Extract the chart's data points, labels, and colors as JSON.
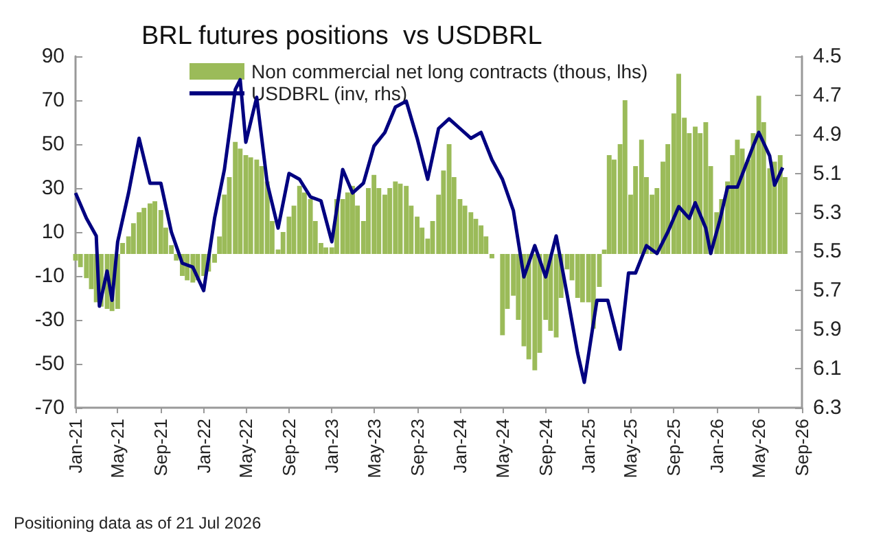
{
  "chart_data": {
    "type": "bar",
    "title": "BRL futures positions  vs USDBRL",
    "annotations": [
      "Positioning data as of 21 Jul 2026"
    ],
    "xlim": [
      "2021-01-01",
      "2026-09-01"
    ],
    "xticks": [
      {
        "value": "2021-01-01",
        "label": "Jan-21"
      },
      {
        "value": "2021-05-01",
        "label": "May-21"
      },
      {
        "value": "2021-09-01",
        "label": "Sep-21"
      },
      {
        "value": "2022-01-01",
        "label": "Jan-22"
      },
      {
        "value": "2022-05-01",
        "label": "May-22"
      },
      {
        "value": "2022-09-01",
        "label": "Sep-22"
      },
      {
        "value": "2023-01-01",
        "label": "Jan-23"
      },
      {
        "value": "2023-05-01",
        "label": "May-23"
      },
      {
        "value": "2023-09-01",
        "label": "Sep-23"
      },
      {
        "value": "2024-01-01",
        "label": "Jan-24"
      },
      {
        "value": "2024-05-01",
        "label": "May-24"
      },
      {
        "value": "2024-09-01",
        "label": "Sep-24"
      },
      {
        "value": "2025-01-01",
        "label": "Jan-25"
      },
      {
        "value": "2025-05-01",
        "label": "May-25"
      },
      {
        "value": "2025-09-01",
        "label": "Sep-25"
      },
      {
        "value": "2026-01-01",
        "label": "Jan-26"
      },
      {
        "value": "2026-05-01",
        "label": "May-26"
      },
      {
        "value": "2026-09-01",
        "label": "Sep-26"
      }
    ],
    "ylim": [
      -70,
      90
    ],
    "yticks": [
      -70,
      -50,
      -30,
      -10,
      10,
      30,
      50,
      70,
      90
    ],
    "y2lim": [
      6.3,
      4.5
    ],
    "y2ticks": [
      4.5,
      4.7,
      4.9,
      5.1,
      5.3,
      5.5,
      5.7,
      5.9,
      6.1,
      6.3
    ],
    "grid": false,
    "legend": "top",
    "series": [
      {
        "name": "Non commercial net long contracts (thous, lhs)",
        "color": "#9bbb59",
        "x": [
          "2021-01-01",
          "2021-01-15",
          "2021-02-01",
          "2021-02-15",
          "2021-03-01",
          "2021-03-15",
          "2021-04-01",
          "2021-04-15",
          "2021-05-01",
          "2021-05-15",
          "2021-06-01",
          "2021-06-15",
          "2021-07-01",
          "2021-07-15",
          "2021-08-01",
          "2021-08-15",
          "2021-09-01",
          "2021-09-15",
          "2021-10-01",
          "2021-10-15",
          "2021-11-01",
          "2021-11-15",
          "2021-12-01",
          "2021-12-15",
          "2022-01-01",
          "2022-01-15",
          "2022-02-01",
          "2022-02-15",
          "2022-03-01",
          "2022-03-15",
          "2022-04-01",
          "2022-04-15",
          "2022-05-01",
          "2022-05-15",
          "2022-06-01",
          "2022-06-15",
          "2022-07-01",
          "2022-07-15",
          "2022-08-01",
          "2022-08-15",
          "2022-09-01",
          "2022-09-15",
          "2022-10-01",
          "2022-10-15",
          "2022-11-01",
          "2022-11-15",
          "2022-12-01",
          "2022-12-15",
          "2023-01-01",
          "2023-01-15",
          "2023-02-01",
          "2023-02-15",
          "2023-03-01",
          "2023-03-15",
          "2023-04-01",
          "2023-04-15",
          "2023-05-01",
          "2023-05-15",
          "2023-06-01",
          "2023-06-15",
          "2023-07-01",
          "2023-07-15",
          "2023-08-01",
          "2023-08-15",
          "2023-09-01",
          "2023-09-15",
          "2023-10-01",
          "2023-10-15",
          "2023-11-01",
          "2023-11-15",
          "2023-12-01",
          "2023-12-15",
          "2024-01-01",
          "2024-01-15",
          "2024-02-01",
          "2024-02-15",
          "2024-03-01",
          "2024-03-15",
          "2024-04-01",
          "2024-04-15",
          "2024-05-01",
          "2024-05-15",
          "2024-06-01",
          "2024-06-15",
          "2024-07-01",
          "2024-07-15",
          "2024-08-01",
          "2024-08-15",
          "2024-09-01",
          "2024-09-15",
          "2024-10-01",
          "2024-10-15",
          "2024-11-01",
          "2024-11-15",
          "2024-12-01",
          "2024-12-15",
          "2025-01-01",
          "2025-01-15",
          "2025-02-01",
          "2025-02-15",
          "2025-03-01",
          "2025-03-15",
          "2025-04-01",
          "2025-04-15",
          "2025-05-01",
          "2025-05-15",
          "2025-06-01",
          "2025-06-15",
          "2025-07-01",
          "2025-07-15",
          "2025-08-01",
          "2025-08-15",
          "2025-09-01",
          "2025-09-15",
          "2025-10-01",
          "2025-10-15",
          "2025-11-01",
          "2025-11-15",
          "2025-12-01",
          "2025-12-15",
          "2026-01-01",
          "2026-01-15",
          "2026-02-01",
          "2026-02-15",
          "2026-03-01",
          "2026-03-15",
          "2026-04-01",
          "2026-04-15",
          "2026-05-01",
          "2026-05-15",
          "2026-06-01",
          "2026-06-15",
          "2026-07-01",
          "2026-07-15"
        ],
        "values": [
          -3,
          -6,
          -11,
          -16,
          -22,
          -24,
          -25,
          -26,
          -25,
          5,
          8,
          14,
          19,
          21,
          23,
          24,
          20,
          12,
          4,
          -3,
          -10,
          -12,
          -13,
          -12,
          -10,
          -8,
          -4,
          8,
          27,
          35,
          51,
          48,
          45,
          44,
          43,
          40,
          33,
          15,
          2,
          10,
          17,
          22,
          31,
          28,
          25,
          15,
          5,
          3,
          3,
          25,
          25,
          28,
          31,
          22,
          15,
          30,
          36,
          30,
          27,
          30,
          33,
          32,
          31,
          22,
          17,
          12,
          7,
          15,
          27,
          38,
          50,
          35,
          25,
          22,
          19,
          16,
          13,
          8,
          -2,
          0,
          -37,
          -25,
          -19,
          -30,
          -42,
          -48,
          -53,
          -45,
          -30,
          -35,
          -38,
          -20,
          -7,
          -12,
          -20,
          -22,
          -22,
          -34,
          -15,
          2,
          45,
          43,
          50,
          70,
          27,
          40,
          52,
          35,
          27,
          30,
          42,
          50,
          64,
          82,
          62,
          55,
          58,
          55,
          60,
          40,
          19,
          25,
          33,
          45,
          52,
          48,
          43,
          55,
          72,
          60,
          39,
          42,
          45,
          35
        ]
      },
      {
        "name": "USDBRL (inv, rhs)",
        "type": "line",
        "axis": "y2",
        "color": "#000080",
        "x": [
          "2021-01-01",
          "2021-02-01",
          "2021-03-01",
          "2021-03-10",
          "2021-04-01",
          "2021-04-15",
          "2021-05-01",
          "2021-06-01",
          "2021-07-01",
          "2021-08-01",
          "2021-09-01",
          "2021-10-01",
          "2021-11-01",
          "2021-12-01",
          "2022-01-01",
          "2022-02-01",
          "2022-03-01",
          "2022-04-01",
          "2022-04-15",
          "2022-05-01",
          "2022-06-01",
          "2022-07-01",
          "2022-08-01",
          "2022-09-01",
          "2022-10-01",
          "2022-11-01",
          "2022-12-01",
          "2023-01-01",
          "2023-02-01",
          "2023-03-01",
          "2023-04-01",
          "2023-05-01",
          "2023-06-01",
          "2023-07-01",
          "2023-08-01",
          "2023-09-01",
          "2023-10-01",
          "2023-11-01",
          "2023-12-01",
          "2024-01-01",
          "2024-02-01",
          "2024-03-01",
          "2024-04-01",
          "2024-05-01",
          "2024-06-01",
          "2024-07-01",
          "2024-08-01",
          "2024-09-01",
          "2024-10-01",
          "2024-11-01",
          "2024-12-01",
          "2024-12-20",
          "2025-01-25",
          "2025-02-25",
          "2025-04-01",
          "2025-04-25",
          "2025-05-15",
          "2025-06-15",
          "2025-07-15",
          "2025-08-15",
          "2025-09-15",
          "2025-10-15",
          "2025-11-01",
          "2025-12-01",
          "2025-12-15",
          "2026-01-10",
          "2026-02-01",
          "2026-03-01",
          "2026-04-15",
          "2026-05-01",
          "2026-06-01",
          "2026-06-15",
          "2026-07-08"
        ],
        "values": [
          5.2,
          5.33,
          5.42,
          5.78,
          5.6,
          5.75,
          5.45,
          5.2,
          4.92,
          5.15,
          5.15,
          5.4,
          5.56,
          5.58,
          5.7,
          5.33,
          5.08,
          4.67,
          4.62,
          4.94,
          4.71,
          5.15,
          5.38,
          5.1,
          5.13,
          5.22,
          5.24,
          5.45,
          5.08,
          5.2,
          5.15,
          4.96,
          4.89,
          4.76,
          4.73,
          4.92,
          5.13,
          4.87,
          4.82,
          4.87,
          4.92,
          4.89,
          5.03,
          5.13,
          5.29,
          5.63,
          5.47,
          5.63,
          5.42,
          5.72,
          6.02,
          6.17,
          5.75,
          5.75,
          6.0,
          5.61,
          5.61,
          5.47,
          5.51,
          5.4,
          5.27,
          5.33,
          5.25,
          5.38,
          5.51,
          5.34,
          5.17,
          5.17,
          4.96,
          4.89,
          5.01,
          5.16,
          5.07
        ]
      }
    ]
  }
}
